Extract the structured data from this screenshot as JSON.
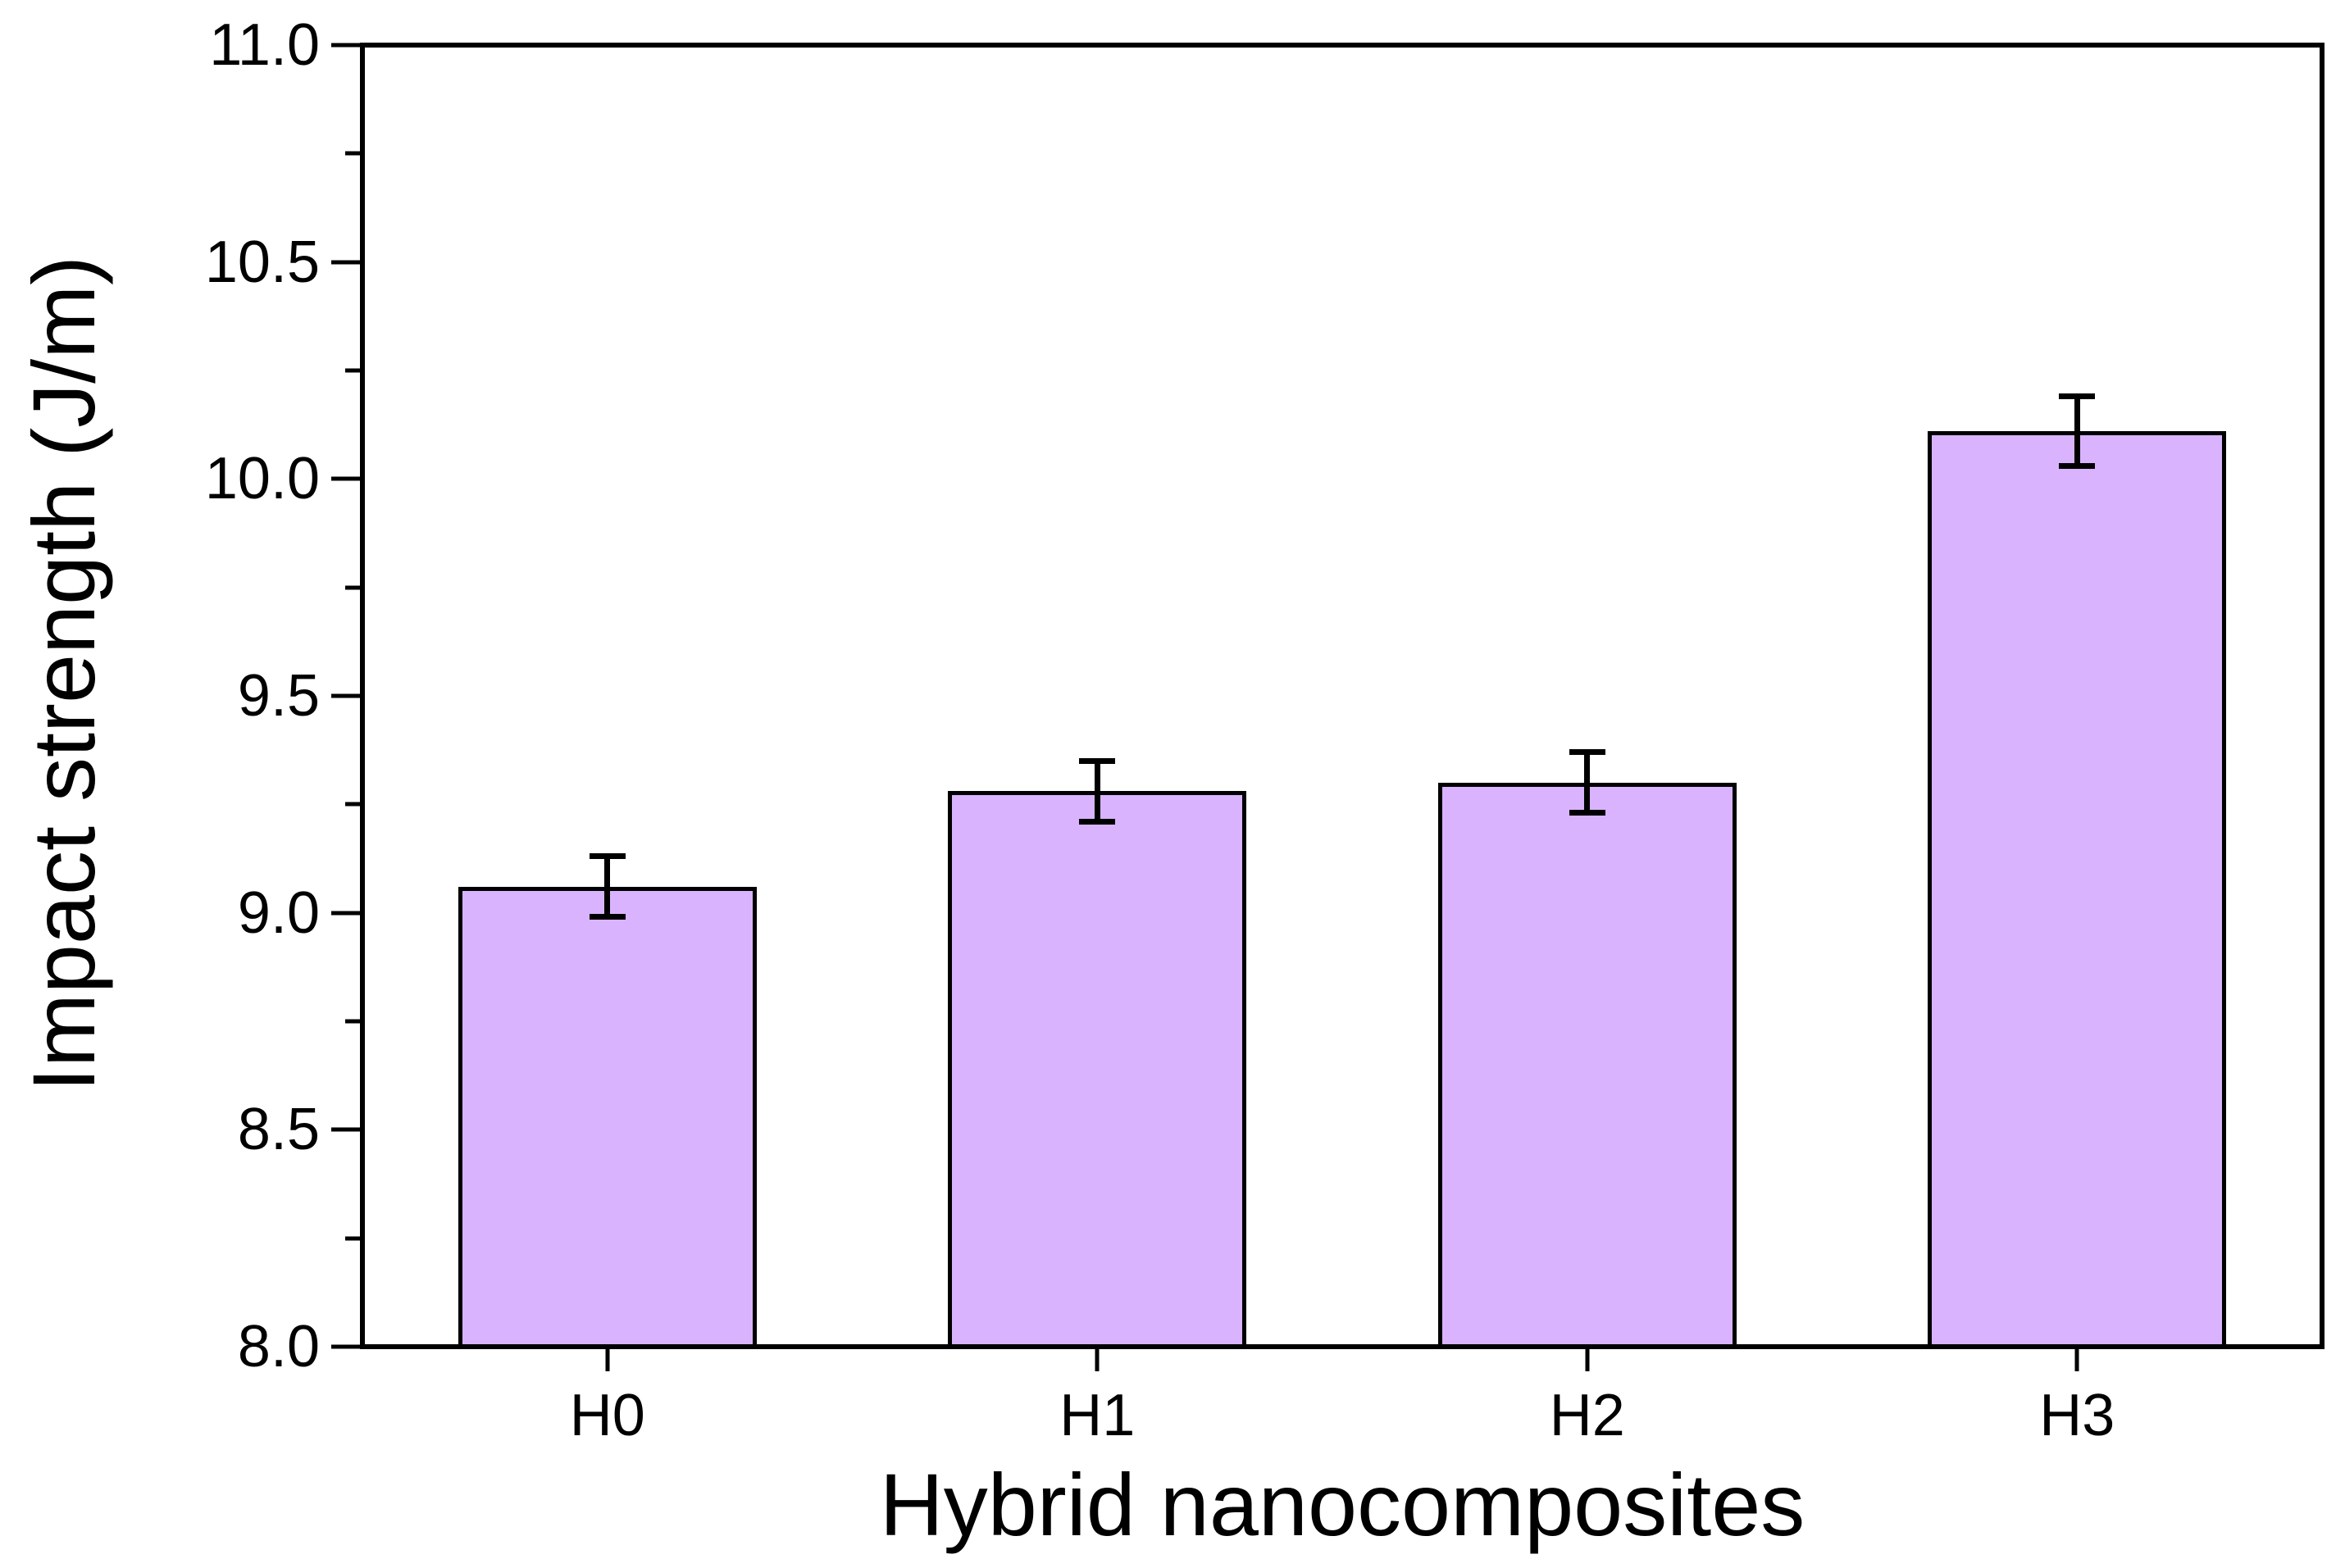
{
  "chart_data": {
    "type": "bar",
    "title": "",
    "categories": [
      "H0",
      "H1",
      "H2",
      "H3"
    ],
    "values": [
      9.06,
      9.28,
      9.3,
      10.11
    ],
    "errors": [
      0.07,
      0.07,
      0.07,
      0.08
    ],
    "xlabel": "Hybrid nanocomposites",
    "ylabel": "Impact strength (J/m)",
    "ylim": [
      8.0,
      11.0
    ],
    "y_major_tick_step": 0.5,
    "y_minor_tick_step": 0.25,
    "y_tick_labels": [
      "8.0",
      "8.5",
      "9.0",
      "9.5",
      "10.0",
      "10.5",
      "11.0"
    ],
    "x_tick_labels": [
      "H0",
      "H1",
      "H2",
      "H3"
    ],
    "bar_fill_color": "#d9b3fd",
    "bar_edge_color": "#000000",
    "error_bar_color": "#000000",
    "axis_color": "#000000",
    "text_color": "#000000",
    "grid": false,
    "legend": null,
    "background_color": "#ffffff"
  }
}
